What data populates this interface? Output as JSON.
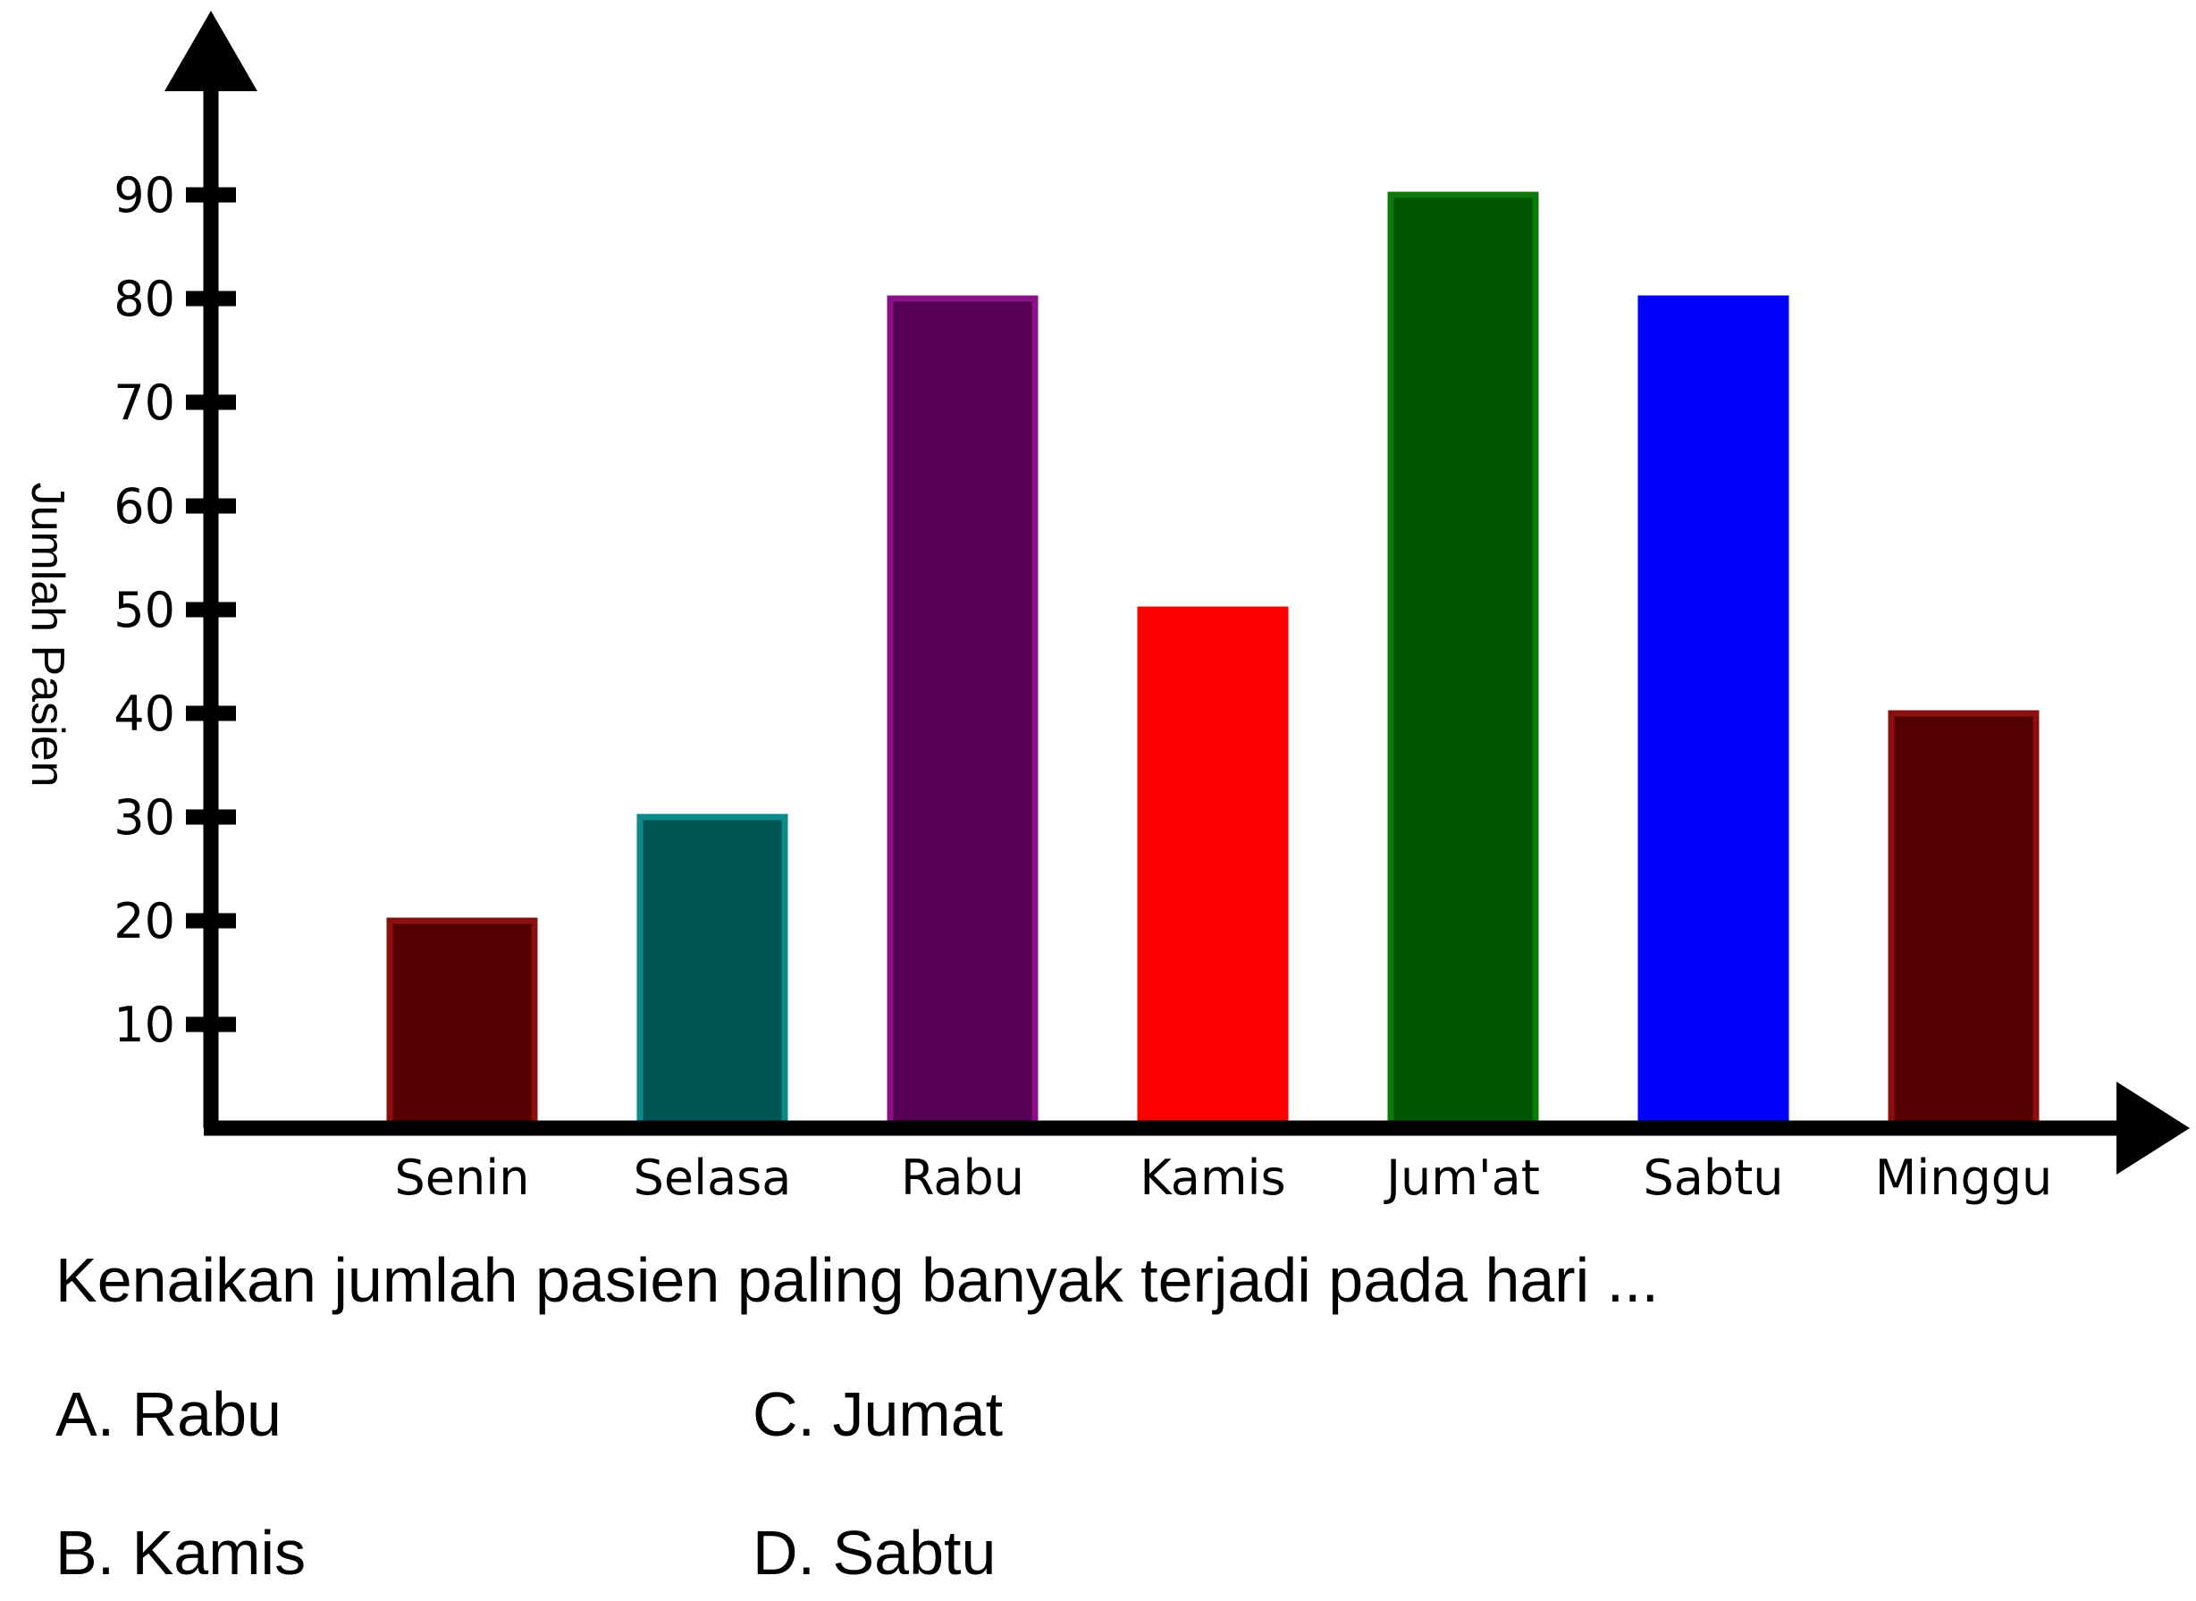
{
  "chart_data": {
    "type": "bar",
    "ylabel": "Jumlah Pasien",
    "xlabel": "",
    "title": "",
    "categories": [
      "Senin",
      "Selasa",
      "Rabu",
      "Kamis",
      "Jum'at",
      "Sabtu",
      "Minggu"
    ],
    "values": [
      20,
      30,
      80,
      50,
      90,
      80,
      40
    ],
    "bar_colors": [
      "#550000",
      "#005555",
      "#550055",
      "#ff0000",
      "#005500",
      "#0000ff",
      "#550000"
    ],
    "bar_outline_colors": [
      "#8a1010",
      "#0a8a8a",
      "#8a108a",
      "#ff0000",
      "#0b7a0b",
      "#0000ff",
      "#8a1010"
    ],
    "yticks": [
      10,
      20,
      30,
      40,
      50,
      60,
      70,
      80,
      90
    ],
    "ylim": [
      0,
      100
    ],
    "grid": false,
    "axis_color": "#000000"
  },
  "question": {
    "text": "Kenaikan jumlah pasien paling banyak terjadi pada hari ...",
    "options": {
      "a": "A. Rabu",
      "b": "B. Kamis",
      "c": "C. Jumat",
      "d": "D. Sabtu"
    }
  }
}
